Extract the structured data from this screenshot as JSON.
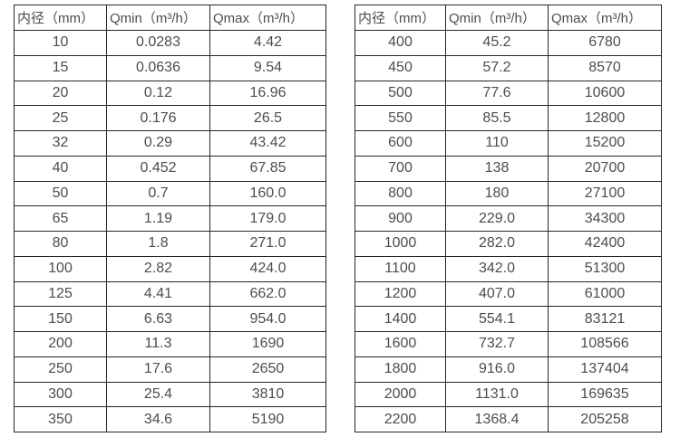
{
  "colors": {
    "background": "#ffffff",
    "border": "#262626",
    "text": "#4d4d4d"
  },
  "tables": [
    {
      "name": "flow-spec-table-small-diameters",
      "headers": [
        "内径（mm）",
        "Qmin（m³/h）",
        "Qmax（m³/h）"
      ],
      "rows": [
        [
          "10",
          "0.0283",
          "4.42"
        ],
        [
          "15",
          "0.0636",
          "9.54"
        ],
        [
          "20",
          "0.12",
          "16.96"
        ],
        [
          "25",
          "0.176",
          "26.5"
        ],
        [
          "32",
          "0.29",
          "43.42"
        ],
        [
          "40",
          "0.452",
          "67.85"
        ],
        [
          "50",
          "0.7",
          "160.0"
        ],
        [
          "65",
          "1.19",
          "179.0"
        ],
        [
          "80",
          "1.8",
          "271.0"
        ],
        [
          "100",
          "2.82",
          "424.0"
        ],
        [
          "125",
          "4.41",
          "662.0"
        ],
        [
          "150",
          "6.63",
          "954.0"
        ],
        [
          "200",
          "11.3",
          "1690"
        ],
        [
          "250",
          "17.6",
          "2650"
        ],
        [
          "300",
          "25.4",
          "3810"
        ],
        [
          "350",
          "34.6",
          "5190"
        ]
      ]
    },
    {
      "name": "flow-spec-table-large-diameters",
      "headers": [
        "内径（mm）",
        "Qmin（m³/h）",
        "Qmax（m³/h）"
      ],
      "rows": [
        [
          "400",
          "45.2",
          "6780"
        ],
        [
          "450",
          "57.2",
          "8570"
        ],
        [
          "500",
          "77.6",
          "10600"
        ],
        [
          "550",
          "85.5",
          "12800"
        ],
        [
          "600",
          "110",
          "15200"
        ],
        [
          "700",
          "138",
          "20700"
        ],
        [
          "800",
          "180",
          "27100"
        ],
        [
          "900",
          "229.0",
          "34300"
        ],
        [
          "1000",
          "282.0",
          "42400"
        ],
        [
          "1100",
          "342.0",
          "51300"
        ],
        [
          "1200",
          "407.0",
          "61000"
        ],
        [
          "1400",
          "554.1",
          "83121"
        ],
        [
          "1600",
          "732.7",
          "108566"
        ],
        [
          "1800",
          "916.0",
          "137404"
        ],
        [
          "2000",
          "1131.0",
          "169635"
        ],
        [
          "2200",
          "1368.4",
          "205258"
        ]
      ]
    }
  ]
}
